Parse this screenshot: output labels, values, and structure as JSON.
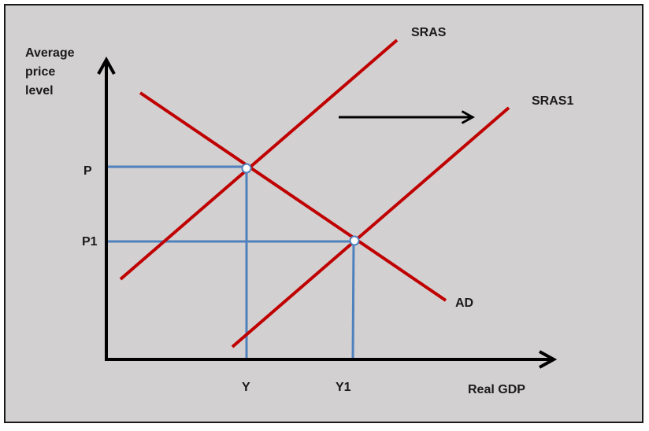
{
  "labels": {
    "y_axis_title": [
      "Average",
      "price",
      "level"
    ],
    "x_axis_title": "Real GDP",
    "curve_sras": "SRAS",
    "curve_sras1": "SRAS1",
    "curve_ad": "AD",
    "price_p": "P",
    "price_p1": "P1",
    "output_y": "Y",
    "output_y1": "Y1"
  },
  "colors": {
    "background": "#d3d0d1",
    "border": "#1a1a1a",
    "curve": "#c00000",
    "guide": "#4f81bd",
    "axis": "#000000",
    "point_fill": "#ffffff",
    "point_stroke": "#4f81bd"
  },
  "arrow": {
    "meaning": "shift-right"
  }
}
